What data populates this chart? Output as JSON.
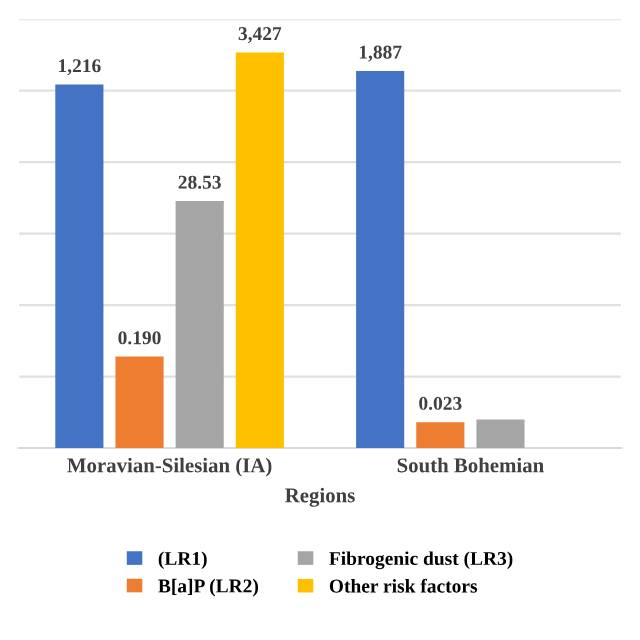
{
  "chart_data": {
    "type": "bar",
    "log": "y",
    "xlabel": "Regions",
    "categories": [
      "Moravian-Silesian (IA)",
      "South Bohemian"
    ],
    "ylim": [
      0.01,
      10000
    ],
    "yticks": [
      {
        "value": 0.01,
        "label": null
      },
      {
        "value": 0.1,
        "label": null
      },
      {
        "value": 1,
        "label": null
      },
      {
        "value": 10,
        "label": null
      },
      {
        "value": 100,
        "label": null
      },
      {
        "value": 1000,
        "label": null
      },
      {
        "value": 10000,
        "label": null
      }
    ],
    "tick_labels": "x",
    "series": [
      {
        "name": "(LR1)",
        "color": "#4472c4",
        "values": [
          1216,
          1887
        ],
        "value_labels": [
          "1,216",
          "1,887"
        ]
      },
      {
        "name": "B[a]P (LR2)",
        "color": "#ed7d31",
        "values": [
          0.19,
          0.023
        ],
        "value_labels": [
          "0.190",
          "0.023"
        ]
      },
      {
        "name": "Fibrogenic dust (LR3)",
        "color": "#a5a5a5",
        "values": [
          28.53,
          0.025
        ],
        "value_labels": [
          "28.53",
          null
        ]
      },
      {
        "name": "Other risk factors",
        "color": "#ffc000",
        "values": [
          3427,
          null
        ],
        "value_labels": [
          "3,427",
          null
        ]
      }
    ],
    "grid": "y",
    "legend": "bottom"
  }
}
